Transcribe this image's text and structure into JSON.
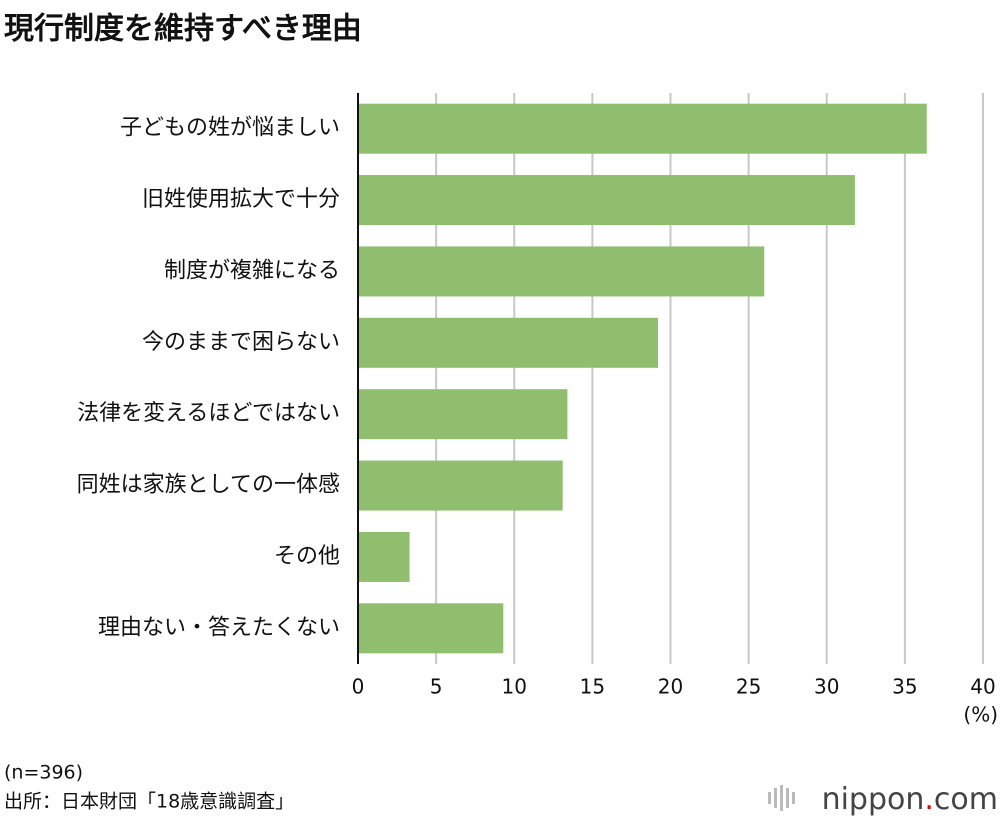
{
  "chart_data": {
    "type": "bar",
    "orientation": "horizontal",
    "title": "現行制度を維持すべき理由",
    "categories": [
      "子どもの姓が悩ましい",
      "旧姓使用拡大で十分",
      "制度が複雑になる",
      "今のままで困らない",
      "法律を変えるほどではない",
      "同姓は家族としての一体感",
      "その他",
      "理由ない・答えたくない"
    ],
    "values": [
      36.4,
      31.8,
      26.0,
      19.2,
      13.4,
      13.1,
      3.3,
      9.3
    ],
    "color": "#8fbf6e",
    "xlim": [
      0,
      40
    ],
    "xticks": [
      0,
      5,
      10,
      15,
      20,
      25,
      30,
      35,
      40
    ],
    "grid": true,
    "unit_label": "(%)",
    "note": "(n=396)",
    "source": "出所：日本財団「18歳意識調査」",
    "logo": [
      "nippon",
      ".",
      "com"
    ]
  }
}
